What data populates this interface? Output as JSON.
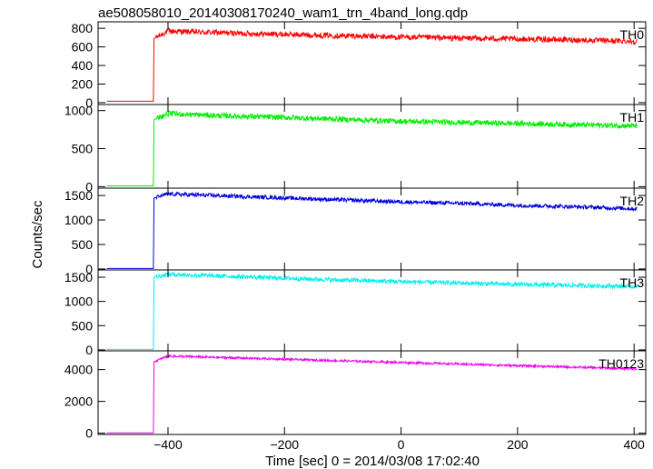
{
  "title": "ae508058010_20140308170240_wam1_trn_4band_long.qdp",
  "ylabel": "Counts/sec",
  "xlabel": "Time [sec] 0 = 2014/03/08 17:02:40",
  "chart_data": {
    "type": "line",
    "title": "ae508058010_20140308170240_wam1_trn_4band_long.qdp",
    "xlabel": "Time [sec] 0 = 2014/03/08 17:02:40",
    "ylabel": "Counts/sec",
    "xlim": [
      -520,
      420
    ],
    "x_ticks": [
      -400,
      -200,
      0,
      200,
      400
    ],
    "grid": false,
    "panels": [
      {
        "name": "TH0",
        "color": "#ff0000",
        "ylim": [
          -20,
          870
        ],
        "y_ticks": [
          0,
          200,
          400,
          600,
          800
        ],
        "series": {
          "x": [
            -505,
            -425,
            -424,
            -400,
            -300,
            -200,
            -100,
            0,
            100,
            200,
            300,
            400
          ],
          "y": [
            15,
            15,
            690,
            770,
            750,
            735,
            720,
            705,
            695,
            685,
            675,
            660
          ]
        },
        "noise": 30
      },
      {
        "name": "TH1",
        "color": "#00ee00",
        "ylim": [
          -20,
          1080
        ],
        "y_ticks": [
          0,
          500,
          1000
        ],
        "series": {
          "x": [
            -505,
            -425,
            -424,
            -400,
            -300,
            -200,
            -100,
            0,
            100,
            200,
            300,
            400
          ],
          "y": [
            10,
            10,
            880,
            960,
            930,
            910,
            885,
            860,
            845,
            830,
            815,
            800
          ]
        },
        "noise": 35
      },
      {
        "name": "TH2",
        "color": "#0000dd",
        "ylim": [
          -20,
          1650
        ],
        "y_ticks": [
          0,
          500,
          1000,
          1500
        ],
        "series": {
          "x": [
            -505,
            -425,
            -424,
            -400,
            -300,
            -200,
            -100,
            0,
            100,
            200,
            300,
            400
          ],
          "y": [
            10,
            10,
            1450,
            1530,
            1490,
            1450,
            1410,
            1370,
            1340,
            1300,
            1270,
            1230
          ]
        },
        "noise": 40
      },
      {
        "name": "TH3",
        "color": "#00eeee",
        "ylim": [
          -20,
          1650
        ],
        "y_ticks": [
          0,
          500,
          1000,
          1500
        ],
        "series": {
          "x": [
            -505,
            -425,
            -424,
            -400,
            -300,
            -200,
            -100,
            0,
            100,
            200,
            300,
            400
          ],
          "y": [
            10,
            10,
            1500,
            1560,
            1520,
            1480,
            1440,
            1410,
            1380,
            1350,
            1330,
            1310
          ]
        },
        "noise": 45
      },
      {
        "name": "TH0123",
        "color": "#ee00ee",
        "ylim": [
          -80,
          5180
        ],
        "y_ticks": [
          0,
          2000,
          4000
        ],
        "series": {
          "x": [
            -505,
            -425,
            -424,
            -400,
            -300,
            -200,
            -100,
            0,
            100,
            200,
            300,
            400
          ],
          "y": [
            15,
            15,
            4500,
            4850,
            4750,
            4650,
            4550,
            4450,
            4350,
            4250,
            4150,
            4050
          ]
        },
        "noise": 70
      }
    ]
  }
}
